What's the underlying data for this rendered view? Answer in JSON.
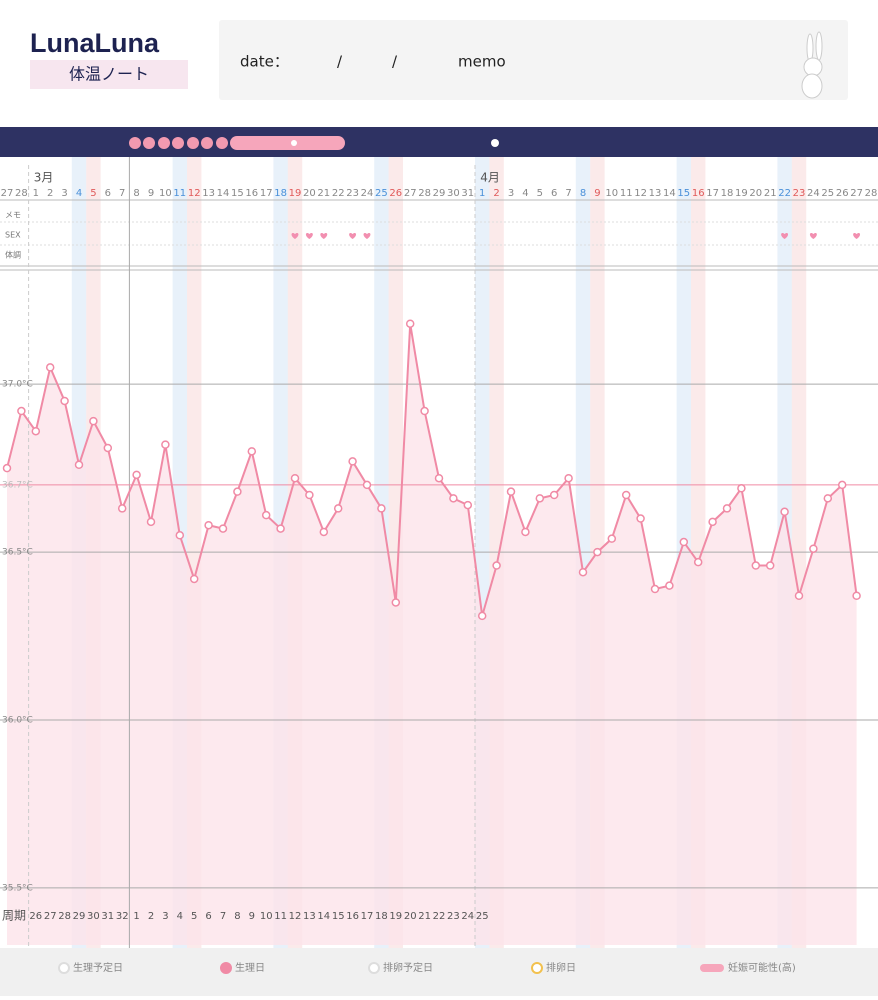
{
  "header": {
    "logo": "LunaLuna",
    "subtitle": "体温ノート",
    "date_label": "date：",
    "date_separators": [
      "/",
      "/"
    ],
    "memo_label": "memo"
  },
  "chart_data": {
    "type": "line",
    "color": "#f08aa5",
    "fill_color": "#fde4ea",
    "month_labels": [
      null,
      null,
      "3月",
      null,
      null,
      null,
      null,
      null,
      null,
      null,
      null,
      null,
      null,
      null,
      null,
      null,
      null,
      null,
      null,
      null,
      null,
      null,
      null,
      null,
      null,
      null,
      null,
      null,
      null,
      null,
      null,
      null,
      null,
      "4月",
      null,
      null,
      null,
      null,
      null,
      null,
      null,
      null,
      null,
      null,
      null,
      null,
      null,
      null,
      null,
      null,
      null,
      null,
      null,
      null,
      null,
      null,
      null,
      null,
      null,
      null,
      null
    ],
    "categories": [
      "27",
      "28",
      "1",
      "2",
      "3",
      "4",
      "5",
      "6",
      "7",
      "8",
      "9",
      "10",
      "11",
      "12",
      "13",
      "14",
      "15",
      "16",
      "17",
      "18",
      "19",
      "20",
      "21",
      "22",
      "23",
      "24",
      "25",
      "26",
      "27",
      "28",
      "29",
      "30",
      "31",
      "1",
      "2",
      "3",
      "4",
      "5",
      "6",
      "7",
      "8",
      "9",
      "10",
      "11",
      "12",
      "13",
      "14",
      "15",
      "16",
      "17",
      "18",
      "19",
      "20",
      "21",
      "22",
      "23",
      "24",
      "25",
      "26",
      "27",
      "28"
    ],
    "category_colors": [
      null,
      null,
      null,
      null,
      null,
      "#4a90d9",
      "#e05a5a",
      null,
      null,
      null,
      null,
      null,
      "#4a90d9",
      "#e05a5a",
      null,
      null,
      null,
      null,
      null,
      "#4a90d9",
      "#e05a5a",
      null,
      null,
      null,
      null,
      null,
      "#4a90d9",
      "#e05a5a",
      null,
      null,
      null,
      null,
      null,
      "#4a90d9",
      "#e05a5a",
      null,
      null,
      null,
      null,
      null,
      "#4a90d9",
      "#e05a5a",
      null,
      null,
      null,
      null,
      null,
      "#4a90d9",
      "#e05a5a",
      null,
      null,
      null,
      null,
      null,
      "#4a90d9",
      "#e05a5a",
      null,
      null,
      null,
      null,
      null
    ],
    "row_labels": [
      "メモ",
      "SEX",
      "体調"
    ],
    "sex_marks": [
      20,
      21,
      22,
      24,
      25,
      54,
      56,
      59
    ],
    "values": [
      36.75,
      36.92,
      36.86,
      37.05,
      36.95,
      36.76,
      36.89,
      36.81,
      36.63,
      36.73,
      36.59,
      36.82,
      36.55,
      36.42,
      36.58,
      36.57,
      36.68,
      36.8,
      36.61,
      36.57,
      36.72,
      36.67,
      36.56,
      36.63,
      36.77,
      36.7,
      36.63,
      36.35,
      37.18,
      36.92,
      36.72,
      36.66,
      36.64,
      36.31,
      36.46,
      36.68,
      36.56,
      36.66,
      36.67,
      36.72,
      36.44,
      36.5,
      36.54,
      36.67,
      36.6,
      36.39,
      36.4,
      36.53,
      36.47,
      36.59,
      36.63,
      36.69,
      36.46,
      36.46,
      36.62,
      36.37,
      36.51,
      36.66,
      36.7,
      36.37,
      null
    ],
    "ylim": [
      35.33,
      37.34
    ],
    "yticks": [
      {
        "value": 37.0,
        "label": "37.0°C"
      },
      {
        "value": 36.5,
        "label": "36.5°C"
      },
      {
        "value": 36.0,
        "label": "36.0°C"
      },
      {
        "value": 35.5,
        "label": "35.5°C"
      }
    ],
    "reference_line": {
      "value": 36.7,
      "label": "36.7°C"
    },
    "cycle_label": "周期",
    "cycle_days": [
      null,
      null,
      26,
      27,
      28,
      29,
      30,
      31,
      32,
      1,
      2,
      3,
      4,
      5,
      6,
      7,
      8,
      9,
      10,
      11,
      12,
      13,
      14,
      15,
      16,
      17,
      18,
      19,
      20,
      21,
      22,
      23,
      24,
      25,
      null,
      null,
      null,
      null,
      null,
      null,
      null,
      null,
      null,
      null,
      null,
      null,
      null,
      null,
      null,
      null,
      null,
      null,
      null,
      null,
      null,
      null,
      null,
      null,
      null,
      null,
      null
    ],
    "legend": [
      "生理予定日",
      "生理日",
      "排卵予定日",
      "排卵日",
      "妊娠可能性(高)"
    ]
  }
}
